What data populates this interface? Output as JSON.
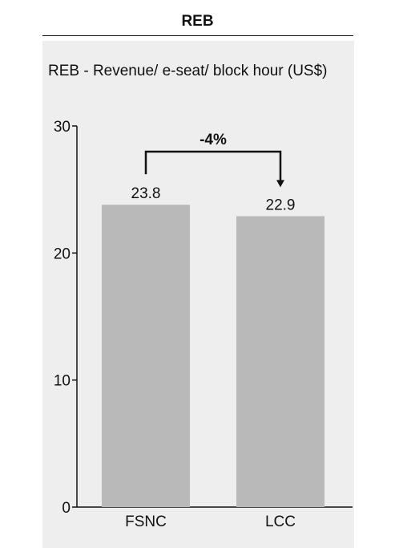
{
  "header": {
    "title": "REB"
  },
  "chart_data": {
    "type": "bar",
    "title": "REB - Revenue/ e-seat/ block hour (US$)",
    "categories": [
      "FSNC",
      "LCC"
    ],
    "values": [
      23.8,
      22.9
    ],
    "value_labels": [
      "23.8",
      "22.9"
    ],
    "xlabel": "",
    "ylabel": "",
    "ylim": [
      0,
      30
    ],
    "yticks": [
      0,
      10,
      20,
      30
    ],
    "ytick_labels": [
      "0",
      "10",
      "20",
      "30"
    ],
    "grid": false,
    "annotations": [
      {
        "type": "change-arrow",
        "from": "FSNC",
        "to": "LCC",
        "label": "-4%"
      }
    ],
    "colors": {
      "bar": "#b9b9b9",
      "axis": "#111111",
      "panel": "#eeeeee"
    }
  }
}
